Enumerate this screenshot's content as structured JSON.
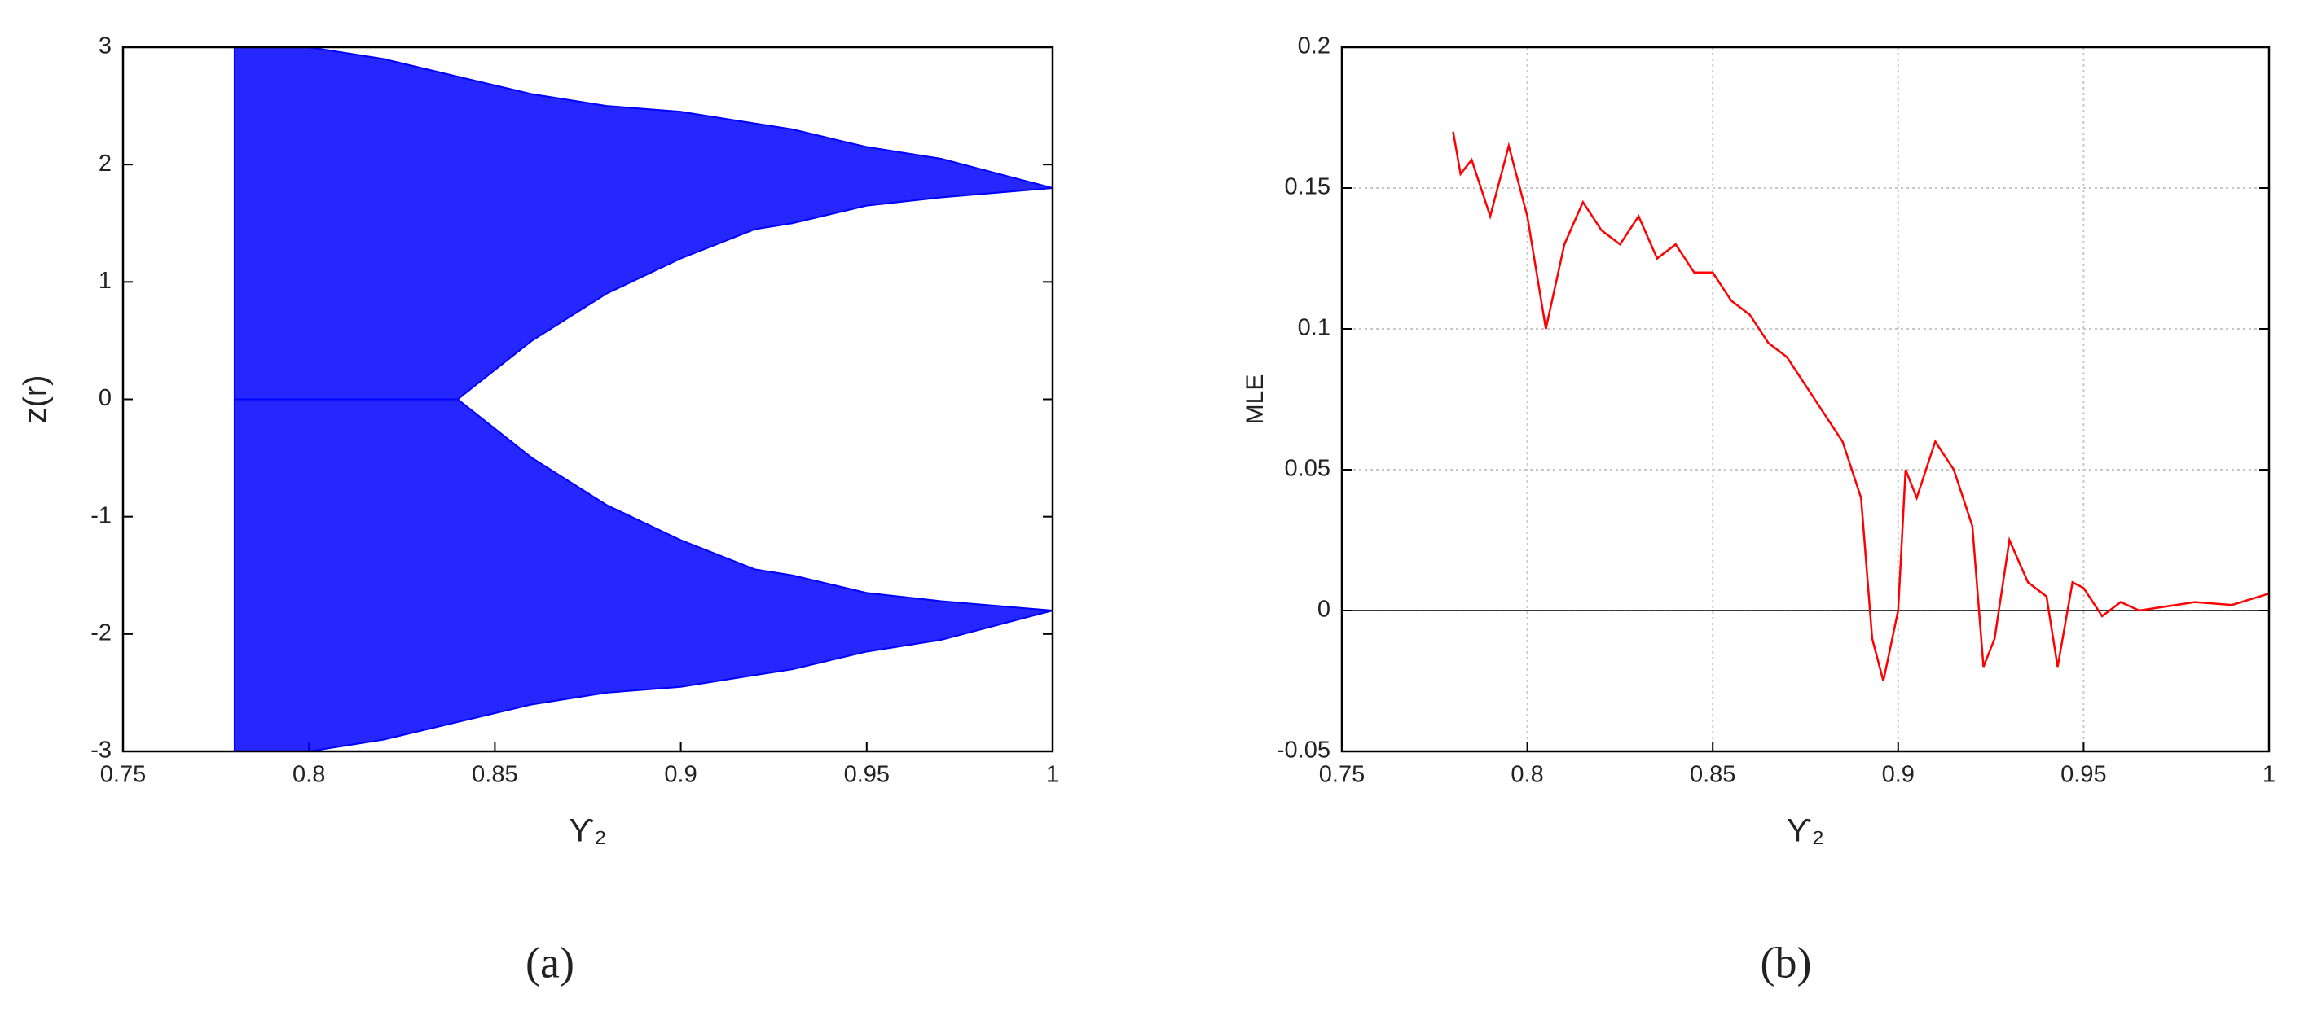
{
  "chart_data": [
    {
      "type": "band",
      "caption": "(a)",
      "xlabel": "ϒ₂",
      "ylabel": "z(r)",
      "x": [
        0.78,
        0.8,
        0.82,
        0.84,
        0.86,
        0.88,
        0.9,
        0.92,
        0.93,
        0.95,
        0.97,
        1.0
      ],
      "series": [
        {
          "color": "#0000ff",
          "low": [
            0,
            0,
            0,
            0,
            0.5,
            0.9,
            1.2,
            1.45,
            1.5,
            1.65,
            1.72,
            1.8
          ],
          "high": [
            3,
            3,
            2.9,
            2.75,
            2.6,
            2.5,
            2.45,
            2.35,
            2.3,
            2.15,
            2.05,
            1.8
          ]
        },
        {
          "color": "#0000ff",
          "low": [
            -3,
            -3,
            -2.9,
            -2.75,
            -2.6,
            -2.5,
            -2.45,
            -2.35,
            -2.3,
            -2.15,
            -2.05,
            -1.8
          ],
          "high": [
            0,
            0,
            0,
            0,
            -0.5,
            -0.9,
            -1.2,
            -1.45,
            -1.5,
            -1.65,
            -1.72,
            -1.8
          ]
        }
      ],
      "xlim": [
        0.75,
        1
      ],
      "xticks": [
        0.75,
        0.8,
        0.85,
        0.9,
        0.95,
        1
      ],
      "ylim": [
        -3,
        3
      ],
      "yticks": [
        -3,
        -2,
        -1,
        0,
        1,
        2,
        3
      ],
      "grid": false
    },
    {
      "type": "line",
      "caption": "(b)",
      "xlabel": "ϒ₂",
      "ylabel": "MLE",
      "x": [
        0.78,
        0.782,
        0.785,
        0.79,
        0.795,
        0.8,
        0.805,
        0.81,
        0.815,
        0.82,
        0.825,
        0.83,
        0.835,
        0.84,
        0.845,
        0.85,
        0.855,
        0.86,
        0.865,
        0.87,
        0.875,
        0.88,
        0.885,
        0.89,
        0.893,
        0.896,
        0.9,
        0.902,
        0.905,
        0.91,
        0.915,
        0.92,
        0.923,
        0.926,
        0.93,
        0.935,
        0.94,
        0.943,
        0.947,
        0.95,
        0.955,
        0.96,
        0.965,
        0.97,
        0.98,
        0.99,
        1.0
      ],
      "series": [
        {
          "color": "#ff0000",
          "values": [
            0.17,
            0.155,
            0.16,
            0.14,
            0.165,
            0.14,
            0.1,
            0.13,
            0.145,
            0.135,
            0.13,
            0.14,
            0.125,
            0.13,
            0.12,
            0.12,
            0.11,
            0.105,
            0.095,
            0.09,
            0.08,
            0.07,
            0.06,
            0.04,
            -0.01,
            -0.025,
            0.0,
            0.05,
            0.04,
            0.06,
            0.05,
            0.03,
            -0.02,
            -0.01,
            0.025,
            0.01,
            0.005,
            -0.02,
            0.01,
            0.008,
            -0.002,
            0.003,
            0.0,
            0.001,
            0.003,
            0.002,
            0.006
          ]
        }
      ],
      "hline": 0,
      "xlim": [
        0.75,
        1
      ],
      "xticks": [
        0.75,
        0.8,
        0.85,
        0.9,
        0.95,
        1
      ],
      "ylim": [
        -0.05,
        0.2
      ],
      "yticks": [
        -0.05,
        0,
        0.05,
        0.1,
        0.15,
        0.2
      ],
      "grid": true
    }
  ]
}
